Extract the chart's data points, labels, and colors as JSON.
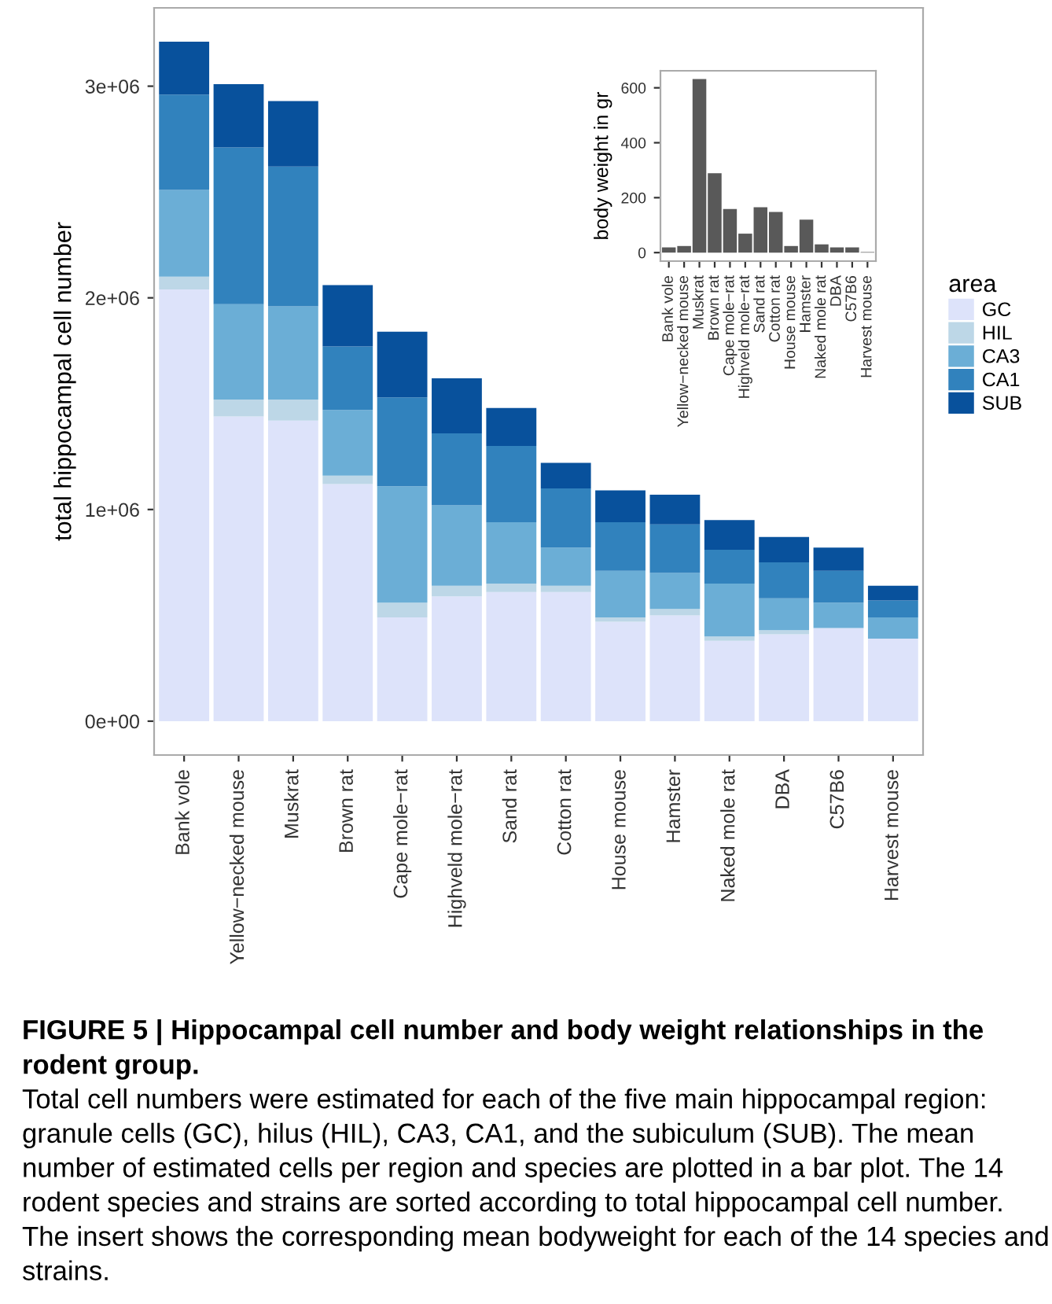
{
  "chart_data": [
    {
      "type": "bar",
      "stacked": true,
      "ylabel": "total hippocampal cell number",
      "legend_title": "area",
      "legend": "right",
      "grid": false,
      "categories": [
        "Bank vole",
        "Yellow−necked mouse",
        "Muskrat",
        "Brown rat",
        "Cape mole−rat",
        "Highveld mole−rat",
        "Sand rat",
        "Cotton rat",
        "House mouse",
        "Hamster",
        "Naked mole rat",
        "DBA",
        "C57B6",
        "Harvest mouse"
      ],
      "series": [
        {
          "name": "GC",
          "color": "#dde3fa",
          "values": [
            2040000,
            1440000,
            1420000,
            1120000,
            490000,
            590000,
            610000,
            610000,
            470000,
            500000,
            380000,
            410000,
            440000,
            390000
          ]
        },
        {
          "name": "HIL",
          "color": "#bdd7e7",
          "values": [
            60000,
            80000,
            100000,
            40000,
            70000,
            50000,
            40000,
            30000,
            20000,
            30000,
            20000,
            20000,
            null,
            null
          ]
        },
        {
          "name": "CA3",
          "color": "#6baed6",
          "values": [
            410000,
            450000,
            440000,
            310000,
            550000,
            380000,
            290000,
            180000,
            220000,
            170000,
            250000,
            150000,
            120000,
            100000
          ]
        },
        {
          "name": "CA1",
          "color": "#3182bd",
          "values": [
            450000,
            740000,
            660000,
            300000,
            420000,
            340000,
            360000,
            280000,
            230000,
            230000,
            160000,
            170000,
            150000,
            80000
          ]
        },
        {
          "name": "SUB",
          "color": "#08519c",
          "values": [
            250000,
            300000,
            310000,
            290000,
            310000,
            260000,
            180000,
            120000,
            150000,
            140000,
            140000,
            120000,
            110000,
            70000
          ]
        }
      ],
      "ylim": [
        -160000,
        3370000
      ],
      "yticks": [
        {
          "value": 0,
          "label": "0e+00"
        },
        {
          "value": 1000000,
          "label": "1e+06"
        },
        {
          "value": 2000000,
          "label": "2e+06"
        },
        {
          "value": 3000000,
          "label": "3e+06"
        }
      ],
      "annotations": [
        "FIGURE 5 | Hippocampal cell number and body weight relationships in the rodent group.",
        "Total cell numbers were estimated for each of the five main hippocampal region: granule cells (GC), hilus (HIL), CA3, CA1, and the subiculum (SUB). The mean number of estimated cells per region and species are plotted in a bar plot. The 14 rodent species and strains are sorted according to total hippocampal cell number. The insert shows the corresponding mean bodyweight for each of the 14 species and strains."
      ]
    },
    {
      "type": "bar",
      "ylabel": "body weight in gr",
      "grid": false,
      "categories": [
        "Bank vole",
        "Yellow−necked mouse",
        "Muskrat",
        "Brown rat",
        "Cape mole−rat",
        "Highveld mole−rat",
        "Sand rat",
        "Cotton rat",
        "House mouse",
        "Hamster",
        "Naked mole rat",
        "DBA",
        "C57B6",
        "Harvest mouse"
      ],
      "values": [
        19,
        24,
        632,
        289,
        159,
        69,
        165,
        148,
        24,
        120,
        30,
        19,
        19,
        2
      ],
      "color": "#595959",
      "ylim": [
        -31,
        662
      ],
      "yticks": [
        0,
        200,
        400,
        600
      ]
    }
  ]
}
